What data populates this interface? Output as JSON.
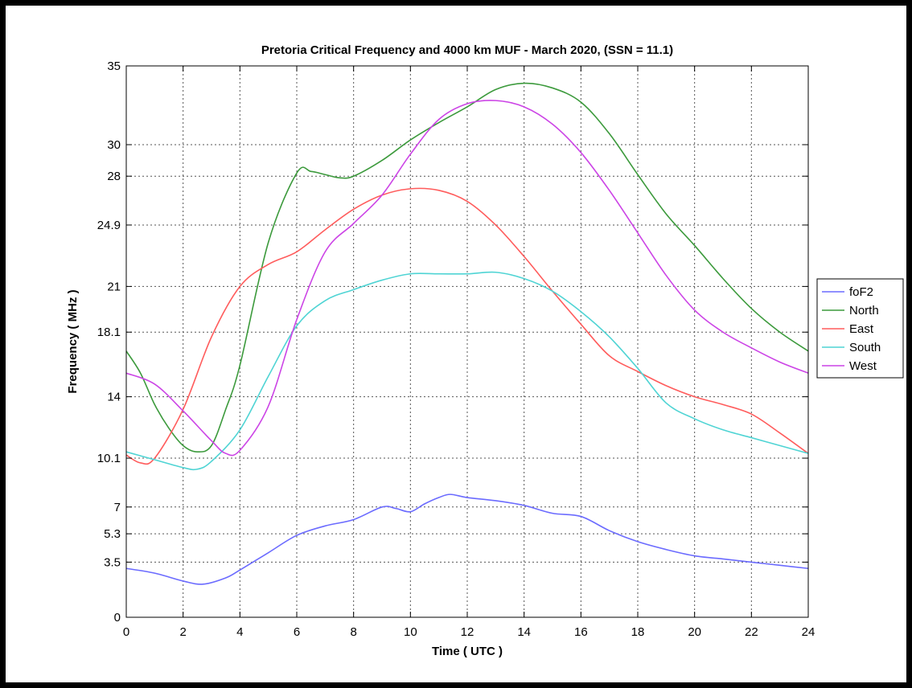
{
  "chart_data": {
    "type": "line",
    "title": "Pretoria Critical Frequency and 4000 km MUF - March 2020, (SSN = 11.1)",
    "xlabel": "Time ( UTC )",
    "ylabel": "Frequency ( MHz )",
    "xlim": [
      0,
      24
    ],
    "ylim": [
      0,
      35
    ],
    "xticks": [
      "0",
      "2",
      "4",
      "6",
      "8",
      "10",
      "12",
      "14",
      "16",
      "18",
      "20",
      "22",
      "24"
    ],
    "yticks": [
      "0",
      "3.5",
      "5.3",
      "7",
      "10.1",
      "14",
      "18.1",
      "21",
      "24.9",
      "28",
      "30",
      "35"
    ],
    "grid": true,
    "legend_position": "outside-right",
    "series": [
      {
        "name": "foF2",
        "color": "#6b6bff",
        "x": [
          0,
          1,
          2,
          2.7,
          3.5,
          4,
          5,
          6,
          7,
          8,
          9,
          9.5,
          10,
          10.5,
          11,
          11.4,
          12,
          13,
          14,
          15,
          16,
          17,
          18,
          19,
          20,
          21,
          22,
          23,
          24
        ],
        "y": [
          3.1,
          2.8,
          2.3,
          2.1,
          2.5,
          3.0,
          4.1,
          5.2,
          5.8,
          6.2,
          7.0,
          6.9,
          6.7,
          7.2,
          7.6,
          7.8,
          7.6,
          7.4,
          7.1,
          6.6,
          6.4,
          5.5,
          4.8,
          4.3,
          3.9,
          3.7,
          3.5,
          3.3,
          3.1
        ]
      },
      {
        "name": "North",
        "color": "#3c9a3c",
        "x": [
          0,
          0.5,
          1,
          1.5,
          2,
          2.5,
          3,
          3.5,
          4,
          5,
          6,
          6.5,
          7,
          7.5,
          8,
          9,
          10,
          11,
          12,
          13,
          14,
          15,
          16,
          17,
          18,
          19,
          20,
          21,
          22,
          23,
          24
        ],
        "y": [
          16.9,
          15.5,
          13.5,
          12.0,
          10.9,
          10.5,
          10.9,
          13.2,
          16.0,
          23.8,
          28.2,
          28.3,
          28.1,
          27.9,
          28.0,
          29.0,
          30.3,
          31.4,
          32.4,
          33.5,
          33.9,
          33.6,
          32.7,
          30.7,
          28.1,
          25.6,
          23.6,
          21.5,
          19.6,
          18.1,
          16.9
        ]
      },
      {
        "name": "East",
        "color": "#ff5c5c",
        "x": [
          0,
          0.5,
          1,
          2,
          3,
          4,
          5,
          6,
          7,
          8,
          9,
          10,
          11,
          12,
          13,
          14,
          15,
          16,
          17,
          18,
          19,
          20,
          21,
          22,
          23,
          24
        ],
        "y": [
          10.3,
          9.8,
          10.1,
          13.2,
          17.8,
          21.0,
          22.4,
          23.2,
          24.6,
          25.9,
          26.8,
          27.2,
          27.1,
          26.4,
          24.9,
          22.9,
          20.7,
          18.6,
          16.6,
          15.6,
          14.7,
          14.0,
          13.5,
          12.9,
          11.7,
          10.4
        ]
      },
      {
        "name": "South",
        "color": "#4fd4d4",
        "x": [
          0,
          1,
          2,
          2.5,
          3,
          4,
          5,
          6,
          7,
          8,
          9,
          10,
          11,
          12,
          13,
          14,
          15,
          16,
          17,
          18,
          19,
          20,
          21,
          22,
          23,
          24
        ],
        "y": [
          10.5,
          10.0,
          9.5,
          9.4,
          9.9,
          11.9,
          15.3,
          18.5,
          20.1,
          20.8,
          21.4,
          21.8,
          21.8,
          21.8,
          21.9,
          21.5,
          20.7,
          19.4,
          17.8,
          15.8,
          13.6,
          12.6,
          11.9,
          11.4,
          10.9,
          10.4
        ]
      },
      {
        "name": "West",
        "color": "#cc44e6",
        "x": [
          0,
          1,
          2,
          3,
          3.5,
          4,
          5,
          6,
          7,
          8,
          9,
          10,
          11,
          12,
          13,
          14,
          15,
          16,
          17,
          18,
          19,
          20,
          21,
          22,
          23,
          24
        ],
        "y": [
          15.5,
          14.8,
          13.1,
          11.2,
          10.4,
          10.6,
          13.4,
          18.9,
          23.2,
          25.0,
          26.8,
          29.4,
          31.6,
          32.6,
          32.8,
          32.4,
          31.3,
          29.5,
          27.1,
          24.4,
          21.7,
          19.5,
          18.1,
          17.1,
          16.2,
          15.5
        ]
      }
    ]
  }
}
